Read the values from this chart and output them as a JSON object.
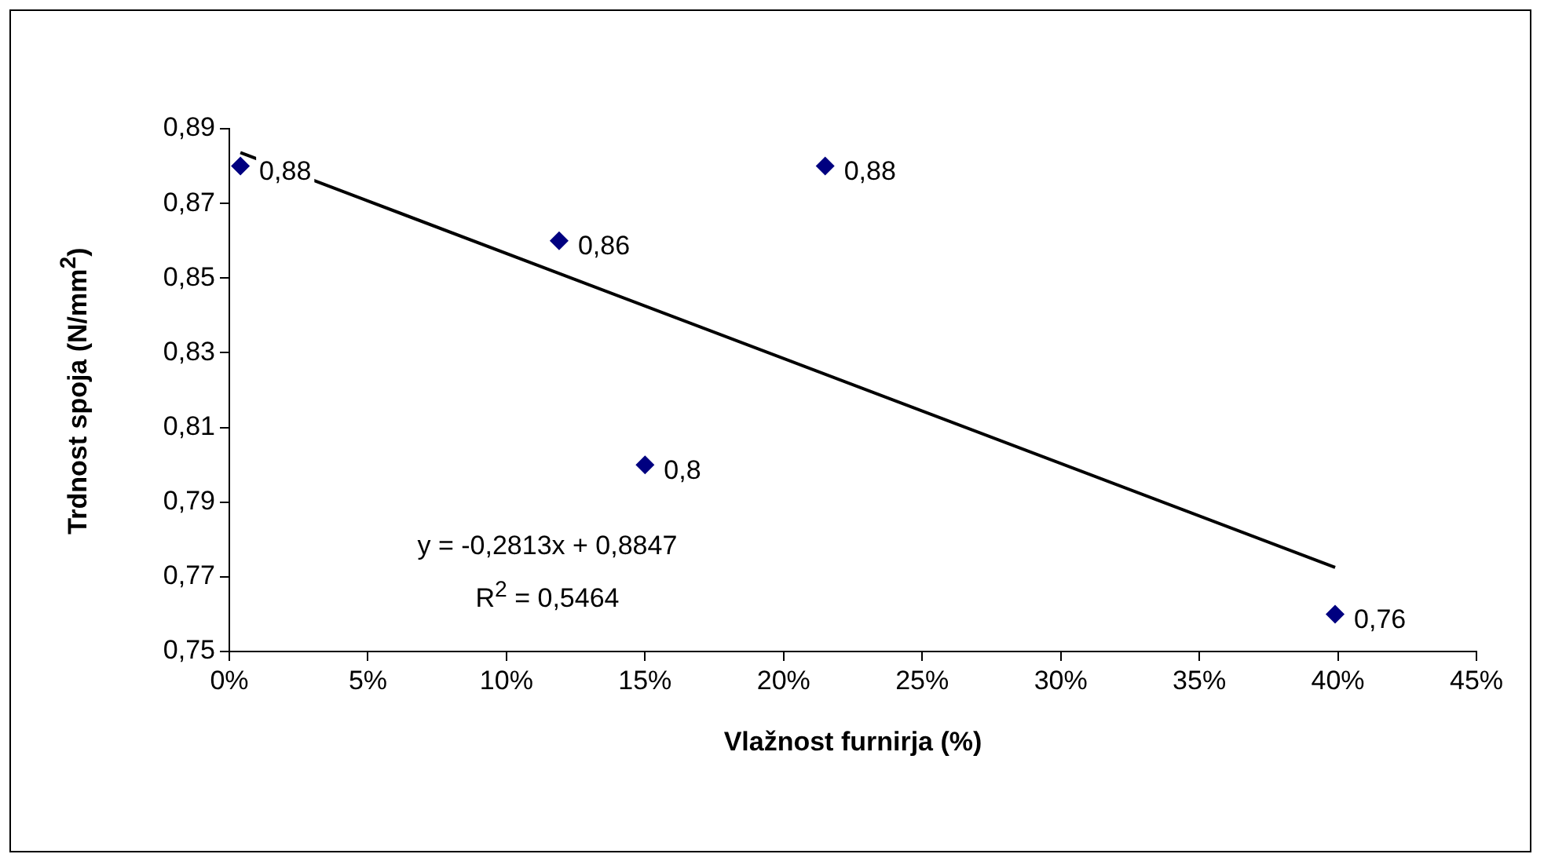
{
  "chart_data": {
    "type": "scatter",
    "xlabel": "Vlažnost furnirja (%)",
    "ylabel": "Trdnost spoja (N/mm$^{2}$)",
    "x": [
      0.4,
      11.9,
      15.0,
      21.5,
      39.9
    ],
    "series": [
      {
        "color": "#000080",
        "marker": "diamond",
        "values": [
          0.88,
          0.86,
          0.8,
          0.88,
          0.76
        ],
        "value_labels": [
          "0,88",
          "0,86",
          "0,8",
          "0,88",
          "0,76"
        ]
      },
      {
        "type": "line",
        "color": "#000000",
        "marker": "none",
        "line_style": "solid",
        "x": [
          0.4,
          39.9
        ],
        "values": [
          0.8836,
          0.7725
        ]
      }
    ],
    "xlim": [
      0,
      45
    ],
    "xticks": [
      {
        "value": 0,
        "label": "0%"
      },
      {
        "value": 5,
        "label": "5%"
      },
      {
        "value": 10,
        "label": "10%"
      },
      {
        "value": 15,
        "label": "15%"
      },
      {
        "value": 20,
        "label": "20%"
      },
      {
        "value": 25,
        "label": "25%"
      },
      {
        "value": 30,
        "label": "30%"
      },
      {
        "value": 35,
        "label": "35%"
      },
      {
        "value": 40,
        "label": "40%"
      },
      {
        "value": 45,
        "label": "45%"
      }
    ],
    "ylim": [
      0.75,
      0.89
    ],
    "yticks": [
      {
        "value": 0.75,
        "label": "0,75"
      },
      {
        "value": 0.77,
        "label": "0,77"
      },
      {
        "value": 0.79,
        "label": "0,79"
      },
      {
        "value": 0.81,
        "label": "0,81"
      },
      {
        "value": 0.83,
        "label": "0,83"
      },
      {
        "value": 0.85,
        "label": "0,85"
      },
      {
        "value": 0.87,
        "label": "0,87"
      },
      {
        "value": 0.89,
        "label": "0,89"
      }
    ],
    "annotations": [
      "y = -0,2813x + 0,8847",
      "R$^{2}$ = 0,5464"
    ],
    "grid": false,
    "legend": false
  }
}
